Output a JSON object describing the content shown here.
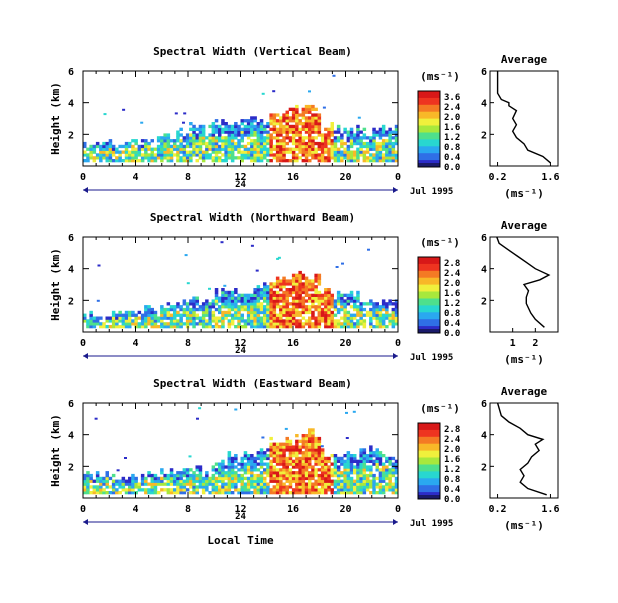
{
  "chart_data": [
    {
      "type": "heatmap",
      "title": "Spectral Width (Vertical Beam)",
      "ylabel": "Height (km)",
      "x_ticks": [
        "0",
        "4",
        "8",
        "12",
        "16",
        "20",
        "0"
      ],
      "y_ticks": [
        "6",
        "4",
        "2"
      ],
      "xlim": [
        0,
        24
      ],
      "ylim": [
        0,
        6
      ],
      "date_marker": "24",
      "date_label": "Jul 1995",
      "colorbar": {
        "unit": "(ms⁻¹)",
        "ticks": [
          "3.6",
          "2.4",
          "2.0",
          "1.6",
          "1.2",
          "0.8",
          "0.4",
          "0.0"
        ]
      },
      "profile": {
        "title": "Average",
        "xlabel": "(ms⁻¹)",
        "x_ticks": [
          "0.2",
          "1.6"
        ],
        "y_ticks": [
          "6",
          "4",
          "2"
        ],
        "xlim": [
          0,
          1.8
        ],
        "ylim": [
          0,
          6
        ],
        "x": [
          1.6,
          1.4,
          1.0,
          0.9,
          0.7,
          0.6,
          0.7,
          0.6,
          0.7,
          0.5,
          0.5,
          0.3,
          0.2,
          0.2,
          0.2
        ],
        "y": [
          0.2,
          0.6,
          1.0,
          1.4,
          1.8,
          2.2,
          2.6,
          3.0,
          3.5,
          3.8,
          4.0,
          4.2,
          4.6,
          5.0,
          6.0
        ]
      },
      "echo_top_km": [
        1.2,
        1.3,
        1.3,
        1.5,
        1.5,
        1.6,
        1.7,
        2.2,
        2.4,
        2.4,
        2.6,
        2.7,
        2.8,
        2.7,
        3.0,
        3.4,
        3.5,
        3.6,
        2.4,
        2.3,
        2.2,
        2.1,
        2.3,
        2.4,
        2.5
      ]
    },
    {
      "type": "heatmap",
      "title": "Spectral Width (Northward Beam)",
      "ylabel": "Height (km)",
      "x_ticks": [
        "0",
        "4",
        "8",
        "12",
        "16",
        "20",
        "0"
      ],
      "y_ticks": [
        "6",
        "4",
        "2"
      ],
      "xlim": [
        0,
        24
      ],
      "ylim": [
        0,
        6
      ],
      "date_marker": "24",
      "date_label": "Jul 1995",
      "colorbar": {
        "unit": "(ms⁻¹)",
        "ticks": [
          "2.8",
          "2.4",
          "2.0",
          "1.6",
          "1.2",
          "0.8",
          "0.4",
          "0.0"
        ]
      },
      "profile": {
        "title": "Average",
        "xlabel": "(ms⁻¹)",
        "x_ticks": [
          "1",
          "2"
        ],
        "y_ticks": [
          "6",
          "4",
          "2"
        ],
        "xlim": [
          0,
          3
        ],
        "ylim": [
          0,
          6
        ],
        "x": [
          2.4,
          2.0,
          1.8,
          1.6,
          1.6,
          1.7,
          1.5,
          2.2,
          2.6,
          2.0,
          1.6,
          1.2,
          0.8,
          0.4,
          0.3
        ],
        "y": [
          0.3,
          0.8,
          1.2,
          1.8,
          2.2,
          2.6,
          3.0,
          3.3,
          3.6,
          4.0,
          4.4,
          4.8,
          5.2,
          5.6,
          6.0
        ]
      },
      "echo_top_km": [
        1.0,
        1.1,
        1.2,
        1.4,
        1.4,
        1.5,
        1.6,
        1.8,
        1.9,
        2.1,
        2.4,
        2.6,
        2.5,
        2.7,
        3.2,
        3.4,
        3.5,
        3.6,
        2.4,
        2.2,
        2.3,
        2.0,
        1.9,
        2.0,
        2.1
      ]
    },
    {
      "type": "heatmap",
      "title": "Spectral Width (Eastward Beam)",
      "ylabel": "Height (km)",
      "x_ticks": [
        "0",
        "4",
        "8",
        "12",
        "16",
        "20",
        "0"
      ],
      "y_ticks": [
        "6",
        "4",
        "2"
      ],
      "xlim": [
        0,
        24
      ],
      "ylim": [
        0,
        6
      ],
      "date_marker": "24",
      "date_label": "Jul 1995",
      "xlabel": "Local Time",
      "colorbar": {
        "unit": "(ms⁻¹)",
        "ticks": [
          "2.8",
          "2.4",
          "2.0",
          "1.6",
          "1.2",
          "0.8",
          "0.4",
          "0.0"
        ]
      },
      "profile": {
        "title": "Average",
        "xlabel": "(ms⁻¹)",
        "x_ticks": [
          "0.2",
          "1.6"
        ],
        "y_ticks": [
          "6",
          "4",
          "2"
        ],
        "xlim": [
          0,
          1.8
        ],
        "ylim": [
          0,
          6
        ],
        "x": [
          1.5,
          1.0,
          0.8,
          0.9,
          0.8,
          1.0,
          1.1,
          1.3,
          1.2,
          1.4,
          1.0,
          0.8,
          0.5,
          0.3,
          0.2
        ],
        "y": [
          0.2,
          0.6,
          1.0,
          1.4,
          1.8,
          2.2,
          2.6,
          3.0,
          3.4,
          3.7,
          4.0,
          4.4,
          4.8,
          5.2,
          6.0
        ]
      },
      "echo_top_km": [
        1.4,
        1.4,
        1.3,
        1.3,
        1.4,
        1.5,
        1.6,
        1.7,
        1.8,
        1.9,
        2.2,
        2.5,
        2.6,
        3.0,
        3.6,
        3.7,
        3.9,
        4.1,
        2.8,
        2.6,
        2.7,
        2.9,
        2.8,
        2.6,
        2.5
      ]
    }
  ]
}
